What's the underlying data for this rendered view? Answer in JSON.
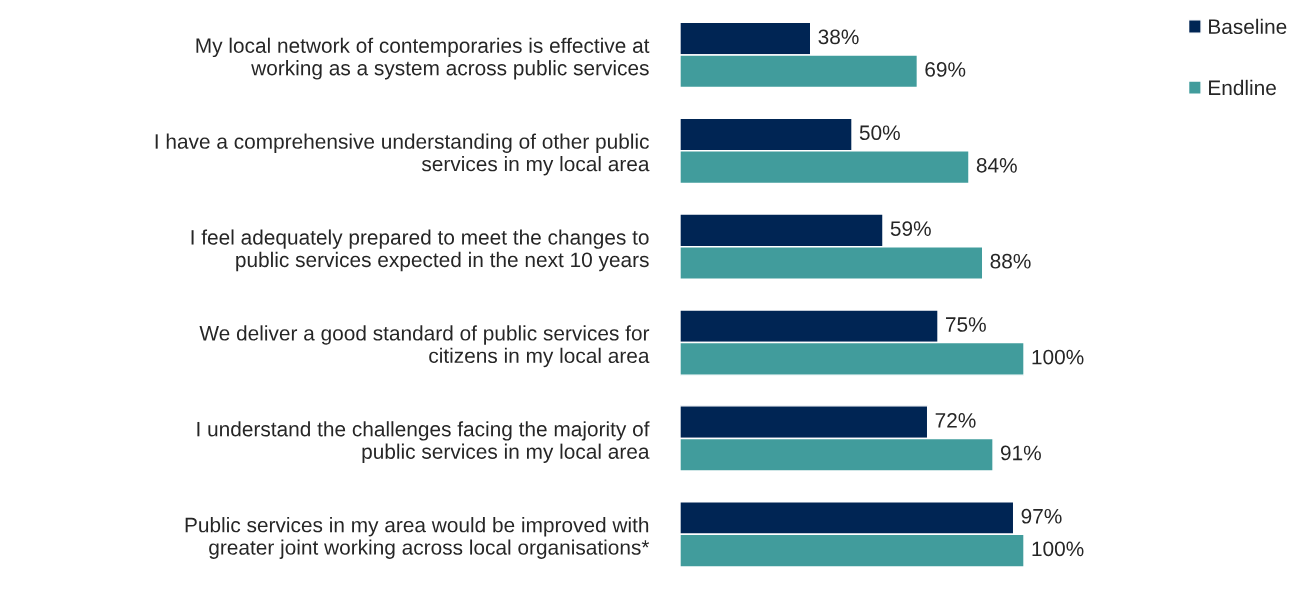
{
  "chart_data": {
    "type": "bar",
    "orientation": "horizontal",
    "categories": [
      "My local network of contemporaries is effective at working as a system across public services",
      "I have a comprehensive understanding of other public services in my local area",
      "I feel adequately prepared to meet the changes to public services expected in the next 10 years",
      "We deliver a good standard of public services for citizens in my local area",
      "I understand the challenges facing the majority of public services in my local area",
      "Public services in my area would be improved with greater joint working across local organisations*"
    ],
    "series": [
      {
        "name": "Baseline",
        "color": "#002554",
        "values": [
          38,
          50,
          59,
          75,
          72,
          97
        ],
        "value_labels": [
          "38%",
          "50%",
          "59%",
          "75%",
          "72%",
          "97%"
        ]
      },
      {
        "name": "Endline",
        "color": "#419c9c",
        "values": [
          69,
          84,
          88,
          100,
          91,
          100
        ],
        "value_labels": [
          "69%",
          "84%",
          "88%",
          "100%",
          "91%",
          "100%"
        ]
      }
    ],
    "xlim": [
      0,
      100
    ],
    "tick_labels": "y",
    "grid": false,
    "legend": "top right"
  }
}
